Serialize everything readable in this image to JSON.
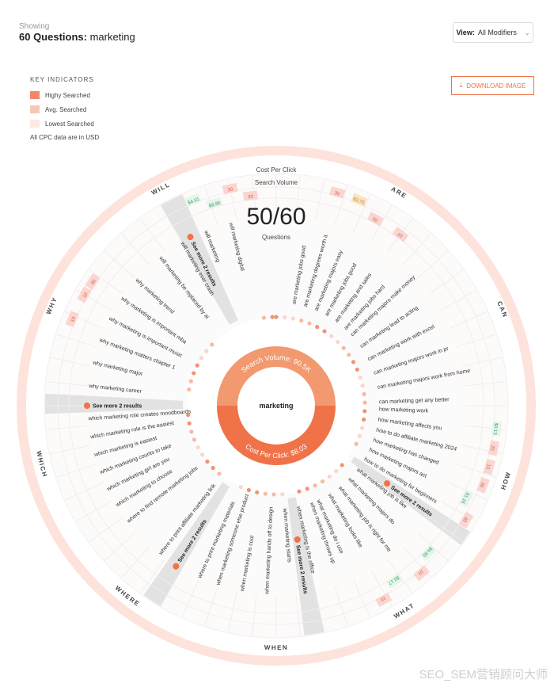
{
  "header": {
    "showing_label": "Showing",
    "count_label": "60 Questions:",
    "keyword": "marketing",
    "view_label": "View:",
    "view_value": "All Modifiers"
  },
  "legend": {
    "title": "KEY INDICATORS",
    "items": [
      {
        "label": "Highy Searched",
        "color": "#f4876a"
      },
      {
        "label": "Avg. Searched",
        "color": "#f8c6b8"
      },
      {
        "label": "Lowest Searched",
        "color": "#fde8e2"
      }
    ],
    "note": "All CPC data are in USD"
  },
  "download_label": "DOWNLOAD IMAGE",
  "wheel": {
    "cpc_label": "Cost Per Click",
    "sv_label": "Search Volume",
    "ratio": "50/60",
    "ratio_label": "Questions",
    "center_keyword": "marketing",
    "search_volume": "Search Volume: 90.5K",
    "cost_per_click": "Cost Per Click: $8.03",
    "see_more": "See more 2 results"
  },
  "modifiers": [
    "WILL",
    "ARE",
    "CAN",
    "HOW",
    "WHAT",
    "WHEN",
    "WHERE",
    "WHICH",
    "WHY"
  ],
  "questions": [
    "will marketing be replaced by ai",
    "will marketing ever crash",
    "will marketing",
    "will marketing digital",
    "are marketing jobs good",
    "are marketing degrees worth it",
    "are marketing majors easy",
    "are marketing jobs good",
    "are marketing and sales",
    "are marketing jobs hard",
    "can marketing majors make money",
    "can marketing lead to acting",
    "can marketing work with excel",
    "can marketing majors work in pr",
    "can marketing majors work from home",
    "can marketing get any better",
    "how marketing work",
    "how marketing affects you",
    "how to do affiliate marketing 2024",
    "how marketing has changed",
    "how marketing majors act",
    "how to do marketing for beginners",
    "what marketing job is like",
    "what marketing majors do",
    "what marketing job is right for me",
    "what marketing looks like",
    "what marketing do i use",
    "when marketing throws up",
    "when marketing is the office",
    "when marketing starts",
    "when marketing hands off to design",
    "when marketing is cool",
    "when marketing someone else product",
    "where to print marketing materials",
    "where to print affiliate marketing link",
    "where to find remote marketing jobs",
    "which marketing to choose",
    "which marketing girl are you",
    "which marketing counts to take",
    "which marketing is easiest",
    "which marketing role is the easiest",
    "which marketing role creates moodboards",
    "why marketing career",
    "why marketing major",
    "why marketing matters chapter 1",
    "why marketing is important music",
    "why marketing is important mba",
    "why marketing trend"
  ],
  "cells": {
    "will": [
      "$4.61",
      "$8.80",
      "30",
      "30"
    ],
    "are": [
      "30",
      "$3.75",
      "50",
      "10"
    ],
    "why": [
      "10",
      "10",
      "40"
    ],
    "how": [
      "$0.13",
      "20",
      "10",
      "30",
      "$1.16",
      "40"
    ],
    "what": [
      "$4.80",
      "10",
      "$0.17",
      "10"
    ]
  }
}
